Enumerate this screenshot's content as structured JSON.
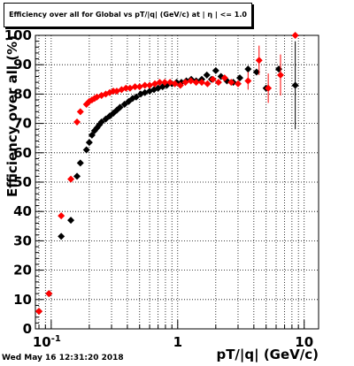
{
  "title": "Efficiency over all for Global vs pT/|q| (GeV/c) at | η | <= 1.0",
  "timestamp": "Wed May 16 12:31:20 2018",
  "chart_data": {
    "type": "scatter",
    "title": "Efficiency over all for Global vs pT/|q| (GeV/c) at | η | <= 1.0",
    "xlabel": "pT/|q| (GeV/c)",
    "ylabel": "Efficiency over all (%)",
    "xscale": "log",
    "xlim": [
      0.075,
      13
    ],
    "ylim": [
      0,
      100
    ],
    "x_ticks": [
      {
        "value": 0.1,
        "label": "10",
        "exp": "-1"
      },
      {
        "value": 1,
        "label": "1",
        "exp": ""
      },
      {
        "value": 10,
        "label": "10",
        "exp": ""
      }
    ],
    "y_ticks": [
      0,
      10,
      20,
      30,
      40,
      50,
      60,
      70,
      80,
      90,
      100
    ],
    "grid": true,
    "series": [
      {
        "color": "#000000",
        "points": [
          {
            "x": 0.08,
            "y": 6
          },
          {
            "x": 0.096,
            "y": 12
          },
          {
            "x": 0.12,
            "y": 31.5
          },
          {
            "x": 0.143,
            "y": 37
          },
          {
            "x": 0.16,
            "y": 52
          },
          {
            "x": 0.17,
            "y": 56.5
          },
          {
            "x": 0.19,
            "y": 61
          },
          {
            "x": 0.2,
            "y": 63.5
          },
          {
            "x": 0.21,
            "y": 66
          },
          {
            "x": 0.22,
            "y": 67.5
          },
          {
            "x": 0.23,
            "y": 68.5
          },
          {
            "x": 0.24,
            "y": 69.5
          },
          {
            "x": 0.25,
            "y": 70.5
          },
          {
            "x": 0.27,
            "y": 71.5
          },
          {
            "x": 0.29,
            "y": 72.5
          },
          {
            "x": 0.31,
            "y": 73.5
          },
          {
            "x": 0.33,
            "y": 74.5
          },
          {
            "x": 0.35,
            "y": 75.5
          },
          {
            "x": 0.38,
            "y": 76.5
          },
          {
            "x": 0.41,
            "y": 77.5
          },
          {
            "x": 0.44,
            "y": 78.5
          },
          {
            "x": 0.47,
            "y": 79
          },
          {
            "x": 0.51,
            "y": 80
          },
          {
            "x": 0.55,
            "y": 80.5
          },
          {
            "x": 0.6,
            "y": 81
          },
          {
            "x": 0.65,
            "y": 81.5
          },
          {
            "x": 0.7,
            "y": 82
          },
          {
            "x": 0.76,
            "y": 82.5
          },
          {
            "x": 0.82,
            "y": 83
          },
          {
            "x": 0.9,
            "y": 83.5
          },
          {
            "x": 0.98,
            "y": 84
          },
          {
            "x": 1.07,
            "y": 84
          },
          {
            "x": 1.17,
            "y": 84.5
          },
          {
            "x": 1.28,
            "y": 85
          },
          {
            "x": 1.4,
            "y": 84.5
          },
          {
            "x": 1.55,
            "y": 85
          },
          {
            "x": 1.7,
            "y": 86.5
          },
          {
            "x": 1.85,
            "y": 85
          },
          {
            "x": 2.0,
            "y": 88
          },
          {
            "x": 2.2,
            "y": 86
          },
          {
            "x": 2.45,
            "y": 84.5
          },
          {
            "x": 2.75,
            "y": 84
          },
          {
            "x": 3.1,
            "y": 85.5
          },
          {
            "x": 3.6,
            "y": 88.5
          },
          {
            "x": 4.2,
            "y": 87.5
          },
          {
            "x": 5.0,
            "y": 82
          },
          {
            "x": 6.3,
            "y": 88.5
          },
          {
            "x": 8.5,
            "y": 83,
            "err": 15
          }
        ]
      },
      {
        "color": "#ff0000",
        "points": [
          {
            "x": 0.08,
            "y": 6
          },
          {
            "x": 0.096,
            "y": 12
          },
          {
            "x": 0.12,
            "y": 38.5
          },
          {
            "x": 0.143,
            "y": 51
          },
          {
            "x": 0.16,
            "y": 70.5
          },
          {
            "x": 0.17,
            "y": 74
          },
          {
            "x": 0.19,
            "y": 76.5
          },
          {
            "x": 0.2,
            "y": 77.5
          },
          {
            "x": 0.21,
            "y": 78
          },
          {
            "x": 0.22,
            "y": 78.5
          },
          {
            "x": 0.23,
            "y": 79
          },
          {
            "x": 0.25,
            "y": 79.5
          },
          {
            "x": 0.27,
            "y": 80
          },
          {
            "x": 0.29,
            "y": 80.5
          },
          {
            "x": 0.31,
            "y": 81
          },
          {
            "x": 0.33,
            "y": 81
          },
          {
            "x": 0.36,
            "y": 81.5
          },
          {
            "x": 0.39,
            "y": 82
          },
          {
            "x": 0.42,
            "y": 82
          },
          {
            "x": 0.46,
            "y": 82.5
          },
          {
            "x": 0.5,
            "y": 82.5
          },
          {
            "x": 0.55,
            "y": 83
          },
          {
            "x": 0.6,
            "y": 83
          },
          {
            "x": 0.66,
            "y": 83.5
          },
          {
            "x": 0.72,
            "y": 84
          },
          {
            "x": 0.79,
            "y": 84
          },
          {
            "x": 0.87,
            "y": 84
          },
          {
            "x": 0.95,
            "y": 83.5
          },
          {
            "x": 1.05,
            "y": 83
          },
          {
            "x": 1.15,
            "y": 84
          },
          {
            "x": 1.27,
            "y": 84.5
          },
          {
            "x": 1.4,
            "y": 84
          },
          {
            "x": 1.55,
            "y": 84
          },
          {
            "x": 1.72,
            "y": 83.5
          },
          {
            "x": 1.9,
            "y": 85
          },
          {
            "x": 2.1,
            "y": 84
          },
          {
            "x": 2.35,
            "y": 85.5
          },
          {
            "x": 2.65,
            "y": 84
          },
          {
            "x": 3.0,
            "y": 83.5
          },
          {
            "x": 3.6,
            "y": 84.5,
            "err": 3
          },
          {
            "x": 4.4,
            "y": 91.5,
            "err": 5
          },
          {
            "x": 5.2,
            "y": 82,
            "err": 5
          },
          {
            "x": 6.5,
            "y": 86.5,
            "err": 7
          },
          {
            "x": 8.5,
            "y": 100,
            "err": 0
          }
        ]
      }
    ]
  }
}
